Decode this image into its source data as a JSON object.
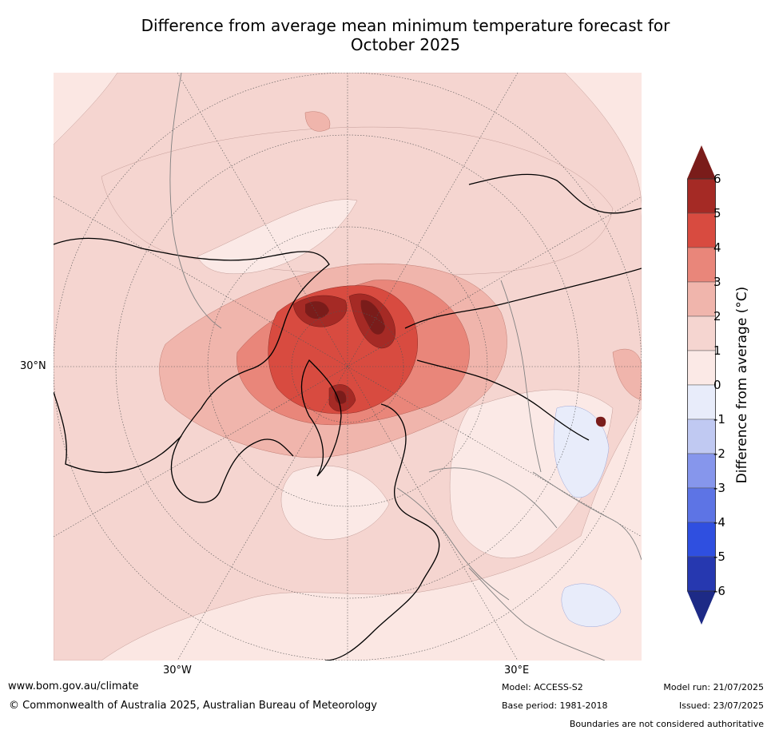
{
  "title_line1": "Difference from average mean minimum temperature forecast for",
  "title_line2": "October 2025",
  "map": {
    "projection": "north polar stereographic",
    "lat_label": "30°N",
    "lon_labels": [
      "30°W",
      "30°E"
    ],
    "colors": {
      "land_outline": "#000000",
      "border": "#808080",
      "grid": "#555555",
      "background_anomaly": "#fbe7e3",
      "dark_red": "#7a1c1a"
    }
  },
  "colorbar": {
    "label": "Difference from average (°C)",
    "ticks": [
      "6",
      "5",
      "4",
      "3",
      "2",
      "1",
      "0",
      "-1",
      "-2",
      "-3",
      "-4",
      "-5",
      "-6"
    ],
    "colors": [
      "#a52a25",
      "#d84b40",
      "#e9867a",
      "#f0b5ac",
      "#f5d5d0",
      "#fbe9e6",
      "#e8ecfa",
      "#c0c9f2",
      "#8696ec",
      "#5d74e5",
      "#2f4fe0",
      "#2638b0"
    ],
    "over_color": "#7a1c1a",
    "under_color": "#1d2a86",
    "range": [
      -6,
      6
    ],
    "extend": "both"
  },
  "footer": {
    "url": "www.bom.gov.au/climate",
    "copyright": "© Commonwealth of Australia 2025, Australian Bureau of Meteorology",
    "model": "Model: ACCESS-S2",
    "base_period": "Base period: 1981-2018",
    "model_run": "Model run: 21/07/2025",
    "issued": "Issued: 23/07/2025",
    "disclaimer": "Boundaries are not considered authoritative"
  }
}
